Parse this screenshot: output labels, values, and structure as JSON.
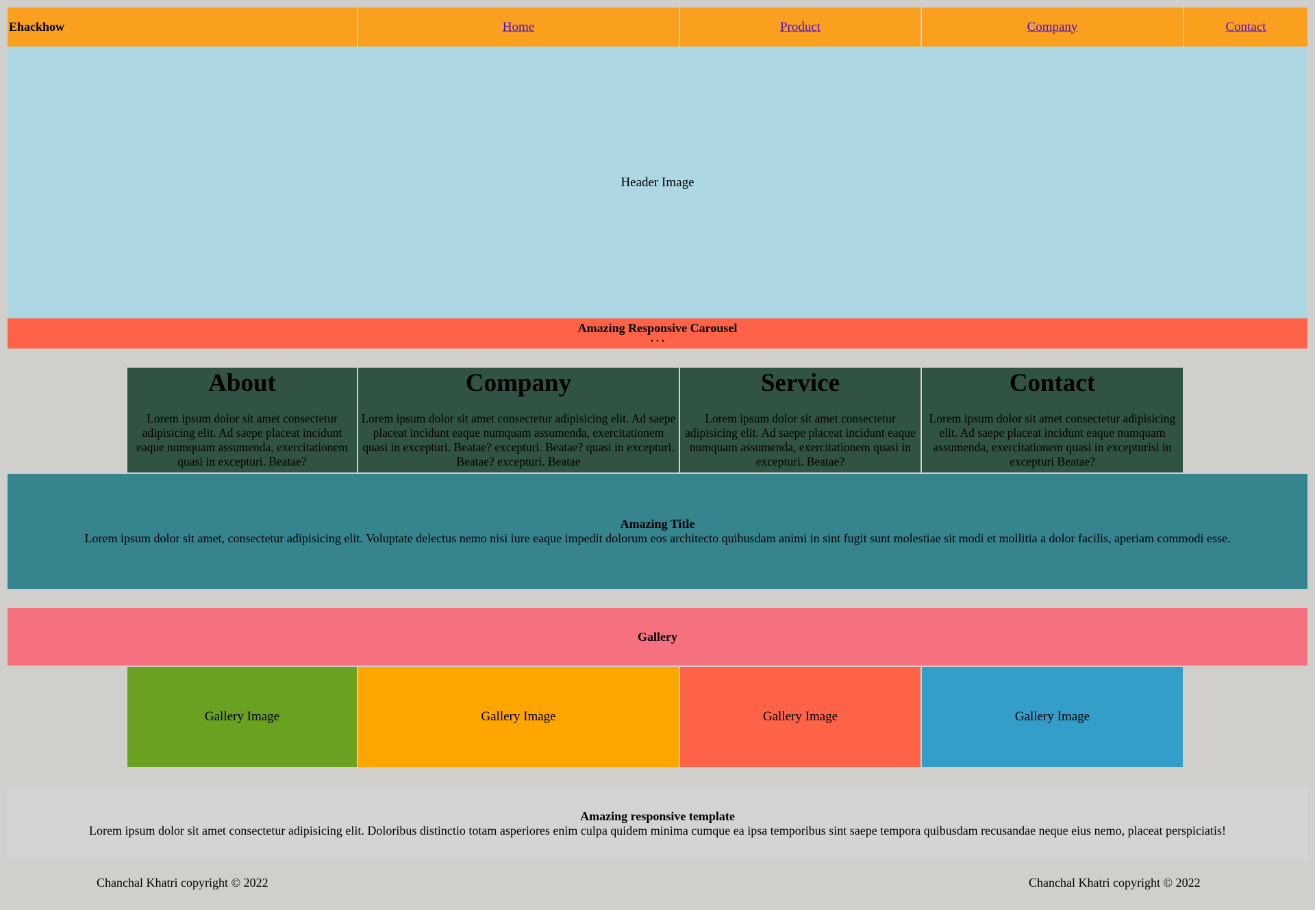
{
  "nav": {
    "brand": "Ehackhow",
    "links": [
      "Home",
      "Product",
      "Company",
      "Contact"
    ]
  },
  "header": {
    "image_label": "Header Image"
  },
  "carousel": {
    "title": "Amazing Responsive Carousel",
    "dots": ". . ."
  },
  "cards": [
    {
      "title": "About",
      "text": "Lorem ipsum dolor sit amet consectetur adipisicing elit. Ad saepe placeat incidunt eaque numquam assumenda, exercitationem quasi in excepturi. Beatae?"
    },
    {
      "title": "Company",
      "text": "Lorem ipsum dolor sit amet consectetur adipisicing elit. Ad saepe placeat incidunt eaque numquam assumenda, exercitationem quasi in excepturi. Beatae? excepturi. Beatae? quasi in excepturi. Beatae? excepturi. Beatae"
    },
    {
      "title": "Service",
      "text": "Lorem ipsum dolor sit amet consectetur adipisicing elit. Ad saepe placeat incidunt eaque numquam assumenda, exercitationem quasi in excepturi. Beatae?"
    },
    {
      "title": "Contact",
      "text": "Lorem ipsum dolor sit amet consectetur adipisicing elit. Ad saepe placeat incidunt eaque numquam assumenda, exercitationem quasi in excepturisi in excepturi Beatae?"
    }
  ],
  "feature": {
    "title": "Amazing Title",
    "text": "Lorem ipsum dolor sit amet, consectetur adipisicing elit. Voluptate delectus nemo nisi iure eaque impedit dolorum eos architecto quibusdam animi in sint fugit sunt molestiae sit modi et mollitia a dolor facilis, aperiam commodi esse."
  },
  "gallery": {
    "title": "Gallery",
    "images": [
      {
        "label": "Gallery Image",
        "color": "#6ba121"
      },
      {
        "label": "Gallery Image",
        "color": "#ffa500"
      },
      {
        "label": "Gallery Image",
        "color": "#ff6347"
      },
      {
        "label": "Gallery Image",
        "color": "#329ec9"
      }
    ]
  },
  "footer": {
    "title": "Amazing responsive template",
    "text": "Lorem ipsum dolor sit amet consectetur adipisicing elit. Doloribus distinctio totam asperiores enim culpa quidem minima cumque ea ipsa temporibus sint saepe tempora quibusdam recusandae neque eius nemo, placeat perspiciatis!",
    "copyright_left": "Chanchal Khatri copyright © 2022",
    "copyright_right": "Chanchal Khatri copyright © 2022"
  },
  "colors": {
    "page_background": "#d0cfcb",
    "nav": "#fa9f1e",
    "header": "#add8e3",
    "carousel": "#ff6347",
    "cards": "#315343",
    "feature": "#35848e",
    "gallery_header": "#f5717f",
    "footer_box": "#d3d3d3",
    "link": "#4a0fe0"
  }
}
